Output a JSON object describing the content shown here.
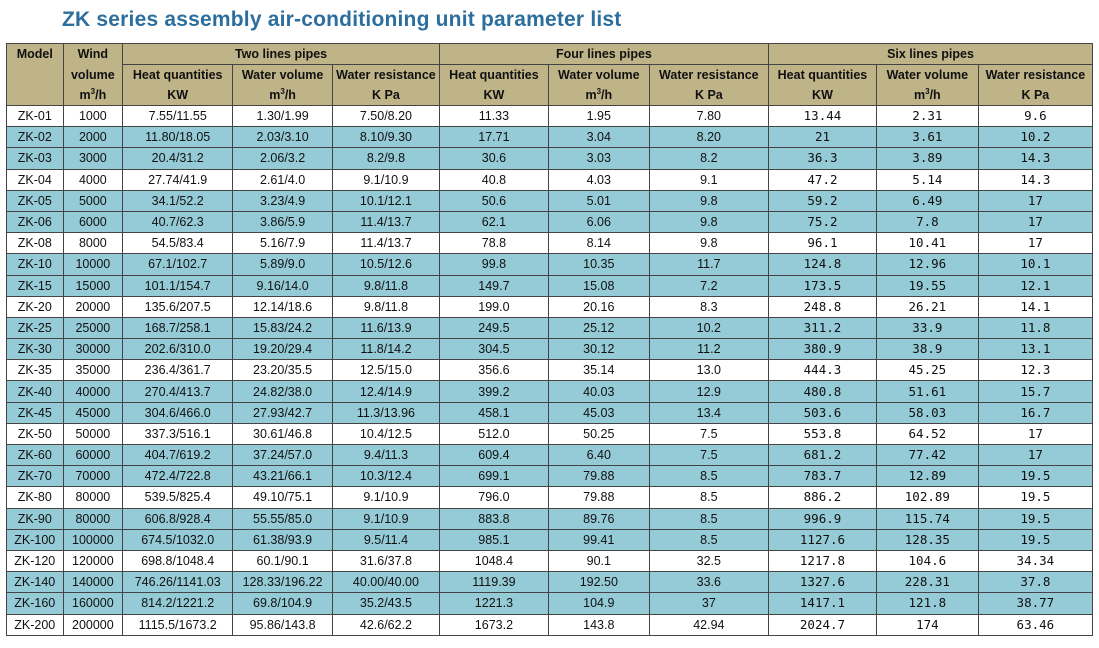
{
  "title": "ZK series assembly air-conditioning unit parameter list",
  "header": {
    "model": "Model",
    "wind_line1": "Wind",
    "wind_line2": "volume",
    "wind_unit_base": "m",
    "wind_unit_sup": "3",
    "wind_unit_tail": "/h",
    "groups": [
      "Two lines pipes",
      "Four lines pipes",
      "Six lines pipes"
    ],
    "sub": [
      "Heat quantities",
      "Water volume",
      "Water resistance"
    ],
    "units": {
      "kw": "KW",
      "m3_base": "m",
      "m3_sup": "3",
      "m3_tail": "/h",
      "kpa": "K Pa"
    }
  },
  "rows": [
    [
      "ZK-01",
      "1000",
      "7.55/11.55",
      "1.30/1.99",
      "7.50/8.20",
      "11.33",
      "1.95",
      "7.80",
      "13.44",
      "2.31",
      "9.6"
    ],
    [
      "ZK-02",
      "2000",
      "11.80/18.05",
      "2.03/3.10",
      "8.10/9.30",
      "17.71",
      "3.04",
      "8.20",
      "21",
      "3.61",
      "10.2"
    ],
    [
      "ZK-03",
      "3000",
      "20.4/31.2",
      "2.06/3.2",
      "8.2/9.8",
      "30.6",
      "3.03",
      "8.2",
      "36.3",
      "3.89",
      "14.3"
    ],
    [
      "ZK-04",
      "4000",
      "27.74/41.9",
      "2.61/4.0",
      "9.1/10.9",
      "40.8",
      "4.03",
      "9.1",
      "47.2",
      "5.14",
      "14.3"
    ],
    [
      "ZK-05",
      "5000",
      "34.1/52.2",
      "3.23/4.9",
      "10.1/12.1",
      "50.6",
      "5.01",
      "9.8",
      "59.2",
      "6.49",
      "17"
    ],
    [
      "ZK-06",
      "6000",
      "40.7/62.3",
      "3.86/5.9",
      "11.4/13.7",
      "62.1",
      "6.06",
      "9.8",
      "75.2",
      "7.8",
      "17"
    ],
    [
      "ZK-08",
      "8000",
      "54.5/83.4",
      "5.16/7.9",
      "11.4/13.7",
      "78.8",
      "8.14",
      "9.8",
      "96.1",
      "10.41",
      "17"
    ],
    [
      "ZK-10",
      "10000",
      "67.1/102.7",
      "5.89/9.0",
      "10.5/12.6",
      "99.8",
      "10.35",
      "11.7",
      "124.8",
      "12.96",
      "10.1"
    ],
    [
      "ZK-15",
      "15000",
      "101.1/154.7",
      "9.16/14.0",
      "9.8/11.8",
      "149.7",
      "15.08",
      "7.2",
      "173.5",
      "19.55",
      "12.1"
    ],
    [
      "ZK-20",
      "20000",
      "135.6/207.5",
      "12.14/18.6",
      "9.8/11.8",
      "199.0",
      "20.16",
      "8.3",
      "248.8",
      "26.21",
      "14.1"
    ],
    [
      "ZK-25",
      "25000",
      "168.7/258.1",
      "15.83/24.2",
      "11.6/13.9",
      "249.5",
      "25.12",
      "10.2",
      "311.2",
      "33.9",
      "11.8"
    ],
    [
      "ZK-30",
      "30000",
      "202.6/310.0",
      "19.20/29.4",
      "11.8/14.2",
      "304.5",
      "30.12",
      "11.2",
      "380.9",
      "38.9",
      "13.1"
    ],
    [
      "ZK-35",
      "35000",
      "236.4/361.7",
      "23.20/35.5",
      "12.5/15.0",
      "356.6",
      "35.14",
      "13.0",
      "444.3",
      "45.25",
      "12.3"
    ],
    [
      "ZK-40",
      "40000",
      "270.4/413.7",
      "24.82/38.0",
      "12.4/14.9",
      "399.2",
      "40.03",
      "12.9",
      "480.8",
      "51.61",
      "15.7"
    ],
    [
      "ZK-45",
      "45000",
      "304.6/466.0",
      "27.93/42.7",
      "11.3/13.96",
      "458.1",
      "45.03",
      "13.4",
      "503.6",
      "58.03",
      "16.7"
    ],
    [
      "ZK-50",
      "50000",
      "337.3/516.1",
      "30.61/46.8",
      "10.4/12.5",
      "512.0",
      "50.25",
      "7.5",
      "553.8",
      "64.52",
      "17"
    ],
    [
      "ZK-60",
      "60000",
      "404.7/619.2",
      "37.24/57.0",
      "9.4/11.3",
      "609.4",
      "6.40",
      "7.5",
      "681.2",
      "77.42",
      "17"
    ],
    [
      "ZK-70",
      "70000",
      "472.4/722.8",
      "43.21/66.1",
      "10.3/12.4",
      "699.1",
      "79.88",
      "8.5",
      "783.7",
      "12.89",
      "19.5"
    ],
    [
      "ZK-80",
      "80000",
      "539.5/825.4",
      "49.10/75.1",
      "9.1/10.9",
      "796.0",
      "79.88",
      "8.5",
      "886.2",
      "102.89",
      "19.5"
    ],
    [
      "ZK-90",
      "80000",
      "606.8/928.4",
      "55.55/85.0",
      "9.1/10.9",
      "883.8",
      "89.76",
      "8.5",
      "996.9",
      "115.74",
      "19.5"
    ],
    [
      "ZK-100",
      "100000",
      "674.5/1032.0",
      "61.38/93.9",
      "9.5/11.4",
      "985.1",
      "99.41",
      "8.5",
      "1127.6",
      "128.35",
      "19.5"
    ],
    [
      "ZK-120",
      "120000",
      "698.8/1048.4",
      "60.1/90.1",
      "31.6/37.8",
      "1048.4",
      "90.1",
      "32.5",
      "1217.8",
      "104.6",
      "34.34"
    ],
    [
      "ZK-140",
      "140000",
      "746.26/1141.03",
      "128.33/196.22",
      "40.00/40.00",
      "1119.39",
      "192.50",
      "33.6",
      "1327.6",
      "228.31",
      "37.8"
    ],
    [
      "ZK-160",
      "160000",
      "814.2/1221.2",
      "69.8/104.9",
      "35.2/43.5",
      "1221.3",
      "104.9",
      "37",
      "1417.1",
      "121.8",
      "38.77"
    ],
    [
      "ZK-200",
      "200000",
      "1115.5/1673.2",
      "95.86/143.8",
      "42.6/62.2",
      "1673.2",
      "143.8",
      "42.94",
      "2024.7",
      "174",
      "63.46"
    ]
  ],
  "row_colors": {
    "white": "#ffffff",
    "blue": "#95cbd6",
    "header": "#bfb388",
    "title": "#2c6f9e"
  },
  "row_shading": [
    "white",
    "blue",
    "blue",
    "white",
    "blue",
    "blue",
    "white",
    "blue",
    "blue",
    "white",
    "blue",
    "blue",
    "white",
    "blue",
    "blue",
    "white",
    "blue",
    "blue",
    "white",
    "blue",
    "blue",
    "white",
    "blue",
    "blue",
    "white"
  ]
}
